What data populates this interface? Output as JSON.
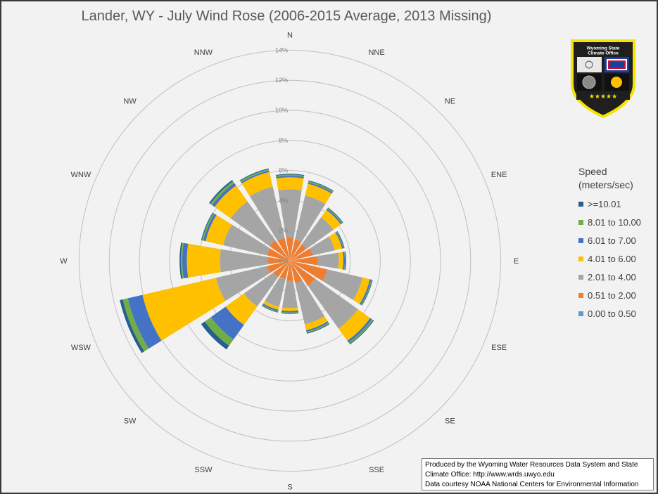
{
  "chart_data": {
    "type": "polar-stacked-bar",
    "title": "Lander, WY - July Wind Rose (2006-2015 Average, 2013 Missing)",
    "directions": [
      "N",
      "NNE",
      "NE",
      "ENE",
      "E",
      "ESE",
      "SE",
      "SSE",
      "S",
      "SSW",
      "SW",
      "WSW",
      "W",
      "WNW",
      "NW",
      "NNW"
    ],
    "radial_ticks": [
      "0%",
      "2%",
      "4%",
      "6%",
      "8%",
      "10%",
      "12%",
      "14%"
    ],
    "rlim": [
      0,
      14
    ],
    "legend": {
      "title": "Speed (meters/sec)",
      "title_line1": "Speed",
      "title_line2": "(meters/sec)",
      "placement": "right"
    },
    "series": [
      {
        "name": "0.00 to 0.50",
        "color": "#5b9bd5",
        "values": [
          0.05,
          0.05,
          0.05,
          0.05,
          0.05,
          0.05,
          0.05,
          0.05,
          0.05,
          0.05,
          0.05,
          0.05,
          0.05,
          0.05,
          0.05,
          0.05
        ]
      },
      {
        "name": "0.51 to 2.00",
        "color": "#ed7d31",
        "values": [
          1.5,
          1.4,
          1.3,
          1.5,
          1.8,
          2.5,
          2.0,
          1.5,
          1.3,
          1.2,
          1.3,
          1.5,
          1.4,
          1.5,
          1.6,
          1.5
        ]
      },
      {
        "name": "2.01 to 4.00",
        "color": "#a5a5a5",
        "values": [
          3.2,
          3.0,
          2.2,
          1.5,
          1.4,
          2.4,
          3.5,
          2.8,
          1.8,
          1.9,
          2.4,
          3.5,
          3.2,
          3.0,
          3.2,
          3.5
        ]
      },
      {
        "name": "4.01 to 6.00",
        "color": "#ffc000",
        "values": [
          0.8,
          0.8,
          0.6,
          0.5,
          0.3,
          0.5,
          1.0,
          0.4,
          0.2,
          0.2,
          1.5,
          5.0,
          2.2,
          1.2,
          1.3,
          1.0
        ]
      },
      {
        "name": "6.01 to 7.00",
        "color": "#4472c4",
        "values": [
          0.1,
          0.1,
          0.1,
          0.08,
          0.1,
          0.1,
          0.15,
          0.1,
          0.1,
          0.1,
          1.2,
          1.0,
          0.3,
          0.15,
          0.2,
          0.1
        ]
      },
      {
        "name": "8.01 to 10.00",
        "color": "#70ad47",
        "values": [
          0.08,
          0.08,
          0.06,
          0.05,
          0.05,
          0.05,
          0.1,
          0.08,
          0.05,
          0.05,
          0.5,
          0.35,
          0.1,
          0.1,
          0.15,
          0.1
        ]
      },
      {
        "name": ">=10.01",
        "color": "#255e91",
        "values": [
          0.05,
          0.05,
          0.04,
          0.04,
          0.04,
          0.04,
          0.05,
          0.05,
          0.04,
          0.04,
          0.3,
          0.2,
          0.08,
          0.05,
          0.1,
          0.05
        ]
      }
    ]
  },
  "logo": {
    "text_line1": "Wyoming State",
    "text_line2": "Climate Office",
    "stars": "★★★★★"
  },
  "credits": {
    "line1": "Produced by the Wyoming Water Resources Data System and State",
    "line2": "Climate Office: http://www.wrds.uwyo.edu",
    "line3": "Data courtesy NOAA National Centers for Environmental Information"
  }
}
